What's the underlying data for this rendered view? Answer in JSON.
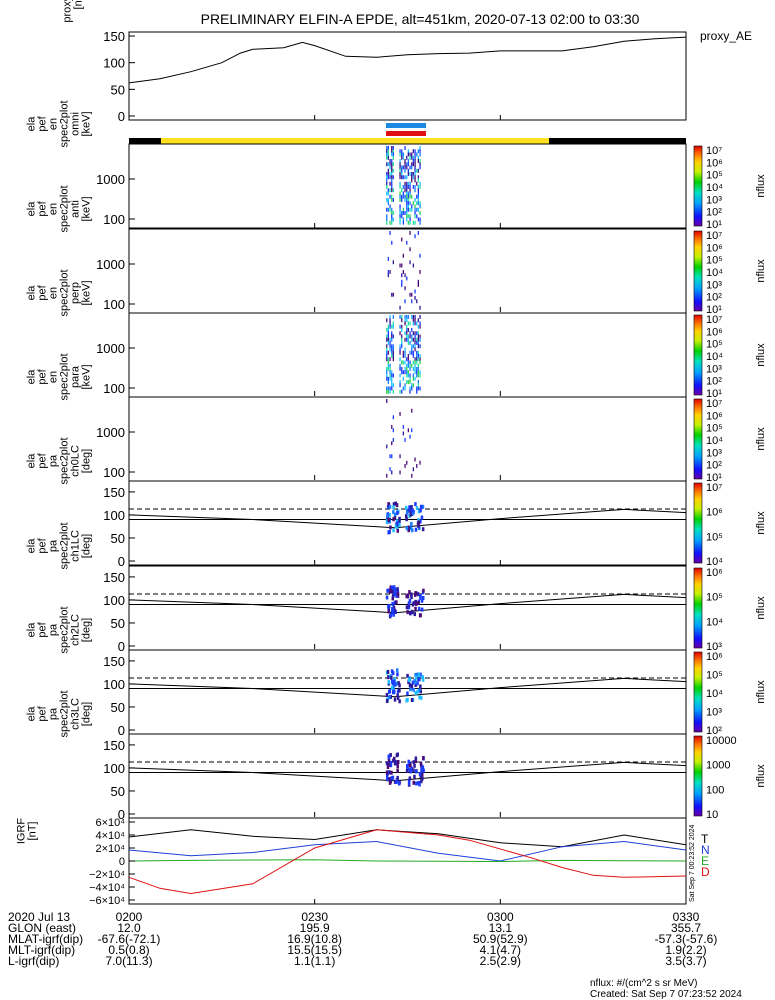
{
  "title": "PRELIMINARY ELFIN-A EPDE, alt=451km, 2020-07-13 02:00 to 03:30",
  "panels": {
    "proxy_ae": {
      "ylabel": [
        "proxy_ae",
        "[nT]"
      ],
      "legend": "proxy_AE",
      "ylim": [
        0,
        150
      ],
      "yticks": [
        "150",
        "100",
        "50",
        "0"
      ]
    },
    "energy": [
      {
        "ylabel": [
          "ela",
          "pef",
          "en",
          "spec2plot",
          "omni",
          "[keV]"
        ]
      },
      {
        "ylabel": [
          "ela",
          "pef",
          "en",
          "spec2plot",
          "anti",
          "[keV]"
        ]
      },
      {
        "ylabel": [
          "ela",
          "pef",
          "en",
          "spec2plot",
          "perp",
          "[keV]"
        ]
      },
      {
        "ylabel": [
          "ela",
          "pef",
          "en",
          "spec2plot",
          "para",
          "[keV]"
        ]
      }
    ],
    "energy_ticks": [
      "1000",
      "100"
    ],
    "pitch": [
      {
        "ylabel": [
          "ela",
          "pef",
          "pa",
          "spec2plot",
          "ch0LC",
          "[deg]"
        ]
      },
      {
        "ylabel": [
          "ela",
          "pef",
          "pa",
          "spec2plot",
          "ch1LC",
          "[deg]"
        ]
      },
      {
        "ylabel": [
          "ela",
          "pef",
          "pa",
          "spec2plot",
          "ch2LC",
          "[deg]"
        ]
      },
      {
        "ylabel": [
          "ela",
          "pef",
          "pa",
          "spec2plot",
          "ch3LC",
          "[deg]"
        ]
      }
    ],
    "pitch_ticks": [
      "150",
      "100",
      "50",
      "0"
    ],
    "igrf": {
      "ylabel": [
        "IGRF",
        "[nT]"
      ],
      "yticks": [
        "6×10⁴",
        "4×10⁴",
        "2×10⁴",
        "0",
        "−2×10⁴",
        "−4×10⁴",
        "−6×10⁴"
      ],
      "legend": [
        {
          "label": "T",
          "color": "#000000"
        },
        {
          "label": "N",
          "color": "#1f3fd8"
        },
        {
          "label": "E",
          "color": "#22aa22"
        },
        {
          "label": "D",
          "color": "#e01010"
        }
      ],
      "side_text": "Sat Sep  7 00:23:52 2024"
    }
  },
  "colorbars": [
    {
      "label": "nflux",
      "ticks": [
        "10⁷",
        "10⁶",
        "10⁵",
        "10⁴",
        "10³",
        "10²",
        "10¹"
      ]
    },
    {
      "label": "nflux",
      "ticks": [
        "10⁷",
        "10⁶",
        "10⁵",
        "10⁴",
        "10³",
        "10²",
        "10¹"
      ]
    },
    {
      "label": "nflux",
      "ticks": [
        "10⁷",
        "10⁶",
        "10⁵",
        "10⁴",
        "10³",
        "10²",
        "10¹"
      ]
    },
    {
      "label": "nflux",
      "ticks": [
        "10⁷",
        "10⁶",
        "10⁵",
        "10⁴",
        "10³",
        "10²",
        "10¹"
      ]
    },
    {
      "label": "nflux",
      "ticks": [
        "10⁷",
        "10⁶",
        "10⁵",
        "10⁴"
      ]
    },
    {
      "label": "nflux",
      "ticks": [
        "10⁶",
        "10⁵",
        "10⁴",
        "10³"
      ]
    },
    {
      "label": "nflux",
      "ticks": [
        "10⁶",
        "10⁵",
        "10⁴",
        "10³",
        "10²"
      ]
    },
    {
      "label": "nflux",
      "ticks": [
        "10000",
        "1000",
        "100",
        "10"
      ]
    }
  ],
  "x_axis": {
    "rows": [
      {
        "label": "2020 Jul 13",
        "values": [
          "0200",
          "0230",
          "0300",
          "0330"
        ]
      },
      {
        "label": "GLON (east)",
        "values": [
          "12.0",
          "195.9",
          "13.1",
          "355.7"
        ]
      },
      {
        "label": "MLAT-igrf(dip)",
        "values": [
          "-67.6(-72.1)",
          "16.9(10.8)",
          "50.9(52.9)",
          "-57.3(-57.6)"
        ]
      },
      {
        "label": "MLT-igrf(dip)",
        "values": [
          "0.5(0.8)",
          "15.5(15.5)",
          "4.1(4.7)",
          "1.9(2.2)"
        ]
      },
      {
        "label": "L-igrf(dip)",
        "values": [
          "7.0(11.3)",
          "1.1(1.1)",
          "2.5(2.9)",
          "3.5(3.7)"
        ]
      }
    ]
  },
  "footer": {
    "units": "nflux: #/(cm^2 s sr MeV)",
    "created": "Created: Sat Sep  7 07:23:52 2024"
  },
  "chart_data": {
    "type": "line",
    "title": "PRELIMINARY ELFIN-A EPDE, alt=451km, 2020-07-13 02:00 to 03:30",
    "x_unit": "minutes after 2020-07-13 02:00",
    "xlim": [
      0,
      90
    ],
    "series": [
      {
        "name": "proxy_AE",
        "ylim": [
          0,
          150
        ],
        "x": [
          0,
          5,
          10,
          15,
          18,
          20,
          25,
          28,
          30,
          35,
          40,
          45,
          50,
          55,
          60,
          65,
          70,
          75,
          80,
          85,
          90
        ],
        "y": [
          62,
          70,
          83,
          100,
          118,
          125,
          128,
          138,
          132,
          112,
          110,
          115,
          117,
          118,
          122,
          122,
          122,
          130,
          140,
          145,
          148
        ]
      },
      {
        "name": "T",
        "x": [
          0,
          10,
          20,
          30,
          40,
          50,
          60,
          70,
          80,
          90
        ],
        "y": [
          37000,
          48000,
          38000,
          33000,
          48000,
          42000,
          28000,
          22000,
          40000,
          25000
        ]
      },
      {
        "name": "N",
        "x": [
          0,
          10,
          20,
          30,
          40,
          50,
          60,
          70,
          80,
          90
        ],
        "y": [
          17000,
          8000,
          13000,
          25000,
          30000,
          12000,
          0,
          22000,
          30000,
          17000
        ]
      },
      {
        "name": "E",
        "x": [
          0,
          10,
          20,
          30,
          40,
          50,
          60,
          70,
          80,
          90
        ],
        "y": [
          0,
          1000,
          1500,
          2000,
          0,
          -500,
          -800,
          1000,
          500,
          0
        ]
      },
      {
        "name": "D",
        "x": [
          0,
          5,
          10,
          20,
          30,
          40,
          50,
          55,
          65,
          70,
          75,
          80,
          90
        ],
        "y": [
          -25000,
          -42000,
          -50000,
          -35000,
          20000,
          48000,
          40000,
          32000,
          5000,
          -10000,
          -22000,
          -25000,
          -23000
        ]
      }
    ],
    "spectrogram_interval_minutes": [
      41,
      48
    ],
    "loss_cone_dashed_deg": 113
  }
}
